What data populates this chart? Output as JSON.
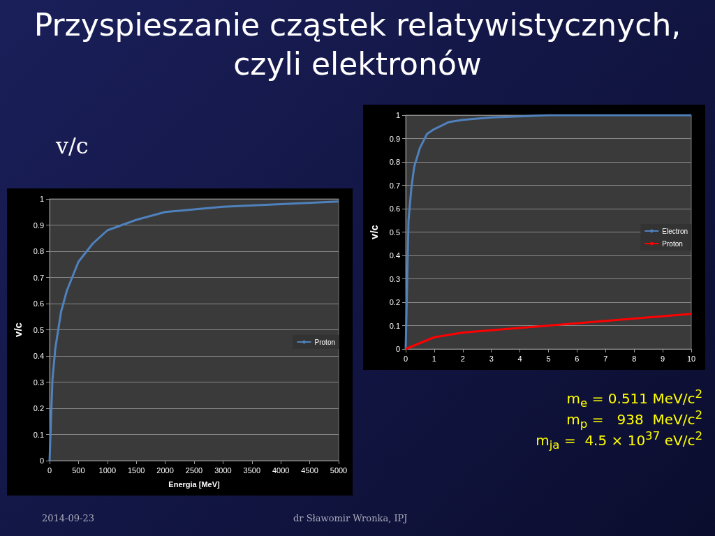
{
  "chart_data": [
    {
      "type": "line",
      "title": "Przyspieszanie cząstek relatywistycznych, czyli elektronów",
      "ylabel": "v/c",
      "xlim": [
        0,
        10
      ],
      "xticks": [
        0,
        1,
        2,
        3,
        4,
        5,
        6,
        7,
        8,
        9,
        10
      ],
      "ylim": [
        0,
        1
      ],
      "yticks": [
        0,
        0.1,
        0.2,
        0.3,
        0.4,
        0.5,
        0.6,
        0.7,
        0.8,
        0.9,
        1
      ],
      "grid": "y",
      "legend": "right",
      "marker": "none",
      "series": [
        {
          "name": "Electron",
          "color": "#4f81bd",
          "x": [
            0,
            0.1,
            0.2,
            0.3,
            0.5,
            0.75,
            1,
            1.5,
            2,
            3,
            5,
            10
          ],
          "values": [
            0,
            0.55,
            0.69,
            0.78,
            0.86,
            0.92,
            0.94,
            0.97,
            0.98,
            0.99,
            1,
            1
          ]
        },
        {
          "name": "Proton",
          "color": "#ff0000",
          "x": [
            0,
            1,
            2,
            5,
            10
          ],
          "values": [
            0,
            0.05,
            0.07,
            0.1,
            0.15
          ]
        }
      ],
      "annotations": [
        "v/c",
        "m$_{e}$ = 0.511 MeV/c$^{2}$",
        "m$_{p}$ =   938  MeV/c$^{2}$",
        "m$_{ja}$ =  4.5 × 10$^{37}$ eV/c$^{2}$",
        "2014-09-23",
        "dr Sławomir Wronka, IPJ"
      ]
    },
    {
      "type": "line",
      "xlabel": "Energia [MeV]",
      "ylabel": "v/c",
      "xlim": [
        0,
        5000
      ],
      "xticks": [
        0,
        500,
        1000,
        1500,
        2000,
        2500,
        3000,
        3500,
        4000,
        4500,
        5000
      ],
      "ylim": [
        0,
        1
      ],
      "yticks": [
        0,
        0.1,
        0.2,
        0.3,
        0.4,
        0.5,
        0.6,
        0.7,
        0.8,
        0.9,
        1
      ],
      "grid": "y",
      "legend": "right",
      "marker": "none",
      "series": [
        {
          "name": "Proton",
          "color": "#4f81bd",
          "x": [
            0,
            50,
            100,
            200,
            300,
            500,
            750,
            1000,
            1500,
            2000,
            2500,
            3000,
            4000,
            5000
          ],
          "values": [
            0,
            0.31,
            0.43,
            0.57,
            0.65,
            0.76,
            0.83,
            0.88,
            0.92,
            0.95,
            0.96,
            0.97,
            0.98,
            0.99
          ]
        }
      ]
    }
  ]
}
